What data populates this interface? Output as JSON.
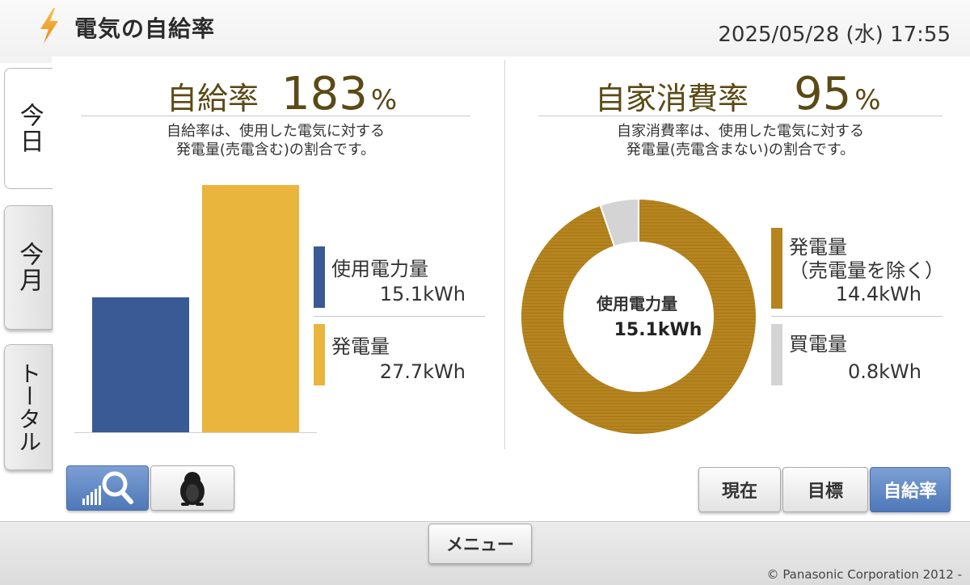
{
  "header": {
    "title": "電気の自給率",
    "datetime": "2025/05/28 (水) 17:55",
    "bolt_color": "#f0a030"
  },
  "tabs": [
    {
      "label": "今日",
      "active": true
    },
    {
      "label": "今月",
      "active": false
    },
    {
      "label": "トータル",
      "active": false
    }
  ],
  "self_sufficiency": {
    "label": "自給率",
    "value": "183",
    "unit": "%",
    "desc_line1": "自給率は、使用した電気に対する",
    "desc_line2": "発電量(売電含む)の割合です。",
    "legend": [
      {
        "name": "使用電力量",
        "value": "15.1kWh",
        "color": "#3a5a95"
      },
      {
        "name": "発電量",
        "value": "27.7kWh",
        "color": "#e9b53c"
      }
    ]
  },
  "self_consumption": {
    "label": "自家消費率",
    "value": "95",
    "unit": "%",
    "desc_line1": "自家消費率は、使用した電気に対する",
    "desc_line2": "発電量(売電含まない)の割合です。",
    "center_label": "使用電力量",
    "center_value": "15.1kWh",
    "legend": [
      {
        "name": "発電量",
        "name_line2": "（売電量を除く）",
        "value": "14.4kWh",
        "color": "#b5841f"
      },
      {
        "name": "買電量",
        "value": "0.8kWh",
        "color": "#d4d4d4"
      }
    ]
  },
  "buttons": {
    "graph_icon": "magnifier-graph-icon",
    "character_icon": "penguin-icon",
    "current": "現在",
    "target": "目標",
    "rate": "自給率",
    "menu": "メニュー"
  },
  "footer": {
    "copyright": "© Panasonic Corporation 2012 -"
  },
  "chart_data": [
    {
      "type": "bar",
      "categories": [
        "使用電力量",
        "発電量"
      ],
      "values": [
        15.1,
        27.7
      ],
      "unit": "kWh",
      "colors": [
        "#3a5a95",
        "#e9b53c"
      ]
    },
    {
      "type": "pie",
      "labels": [
        "発電量（売電量を除く）",
        "買電量"
      ],
      "values": [
        14.4,
        0.8
      ],
      "unit": "kWh",
      "colors": [
        "#b5841f",
        "#d4d4d4"
      ]
    }
  ]
}
